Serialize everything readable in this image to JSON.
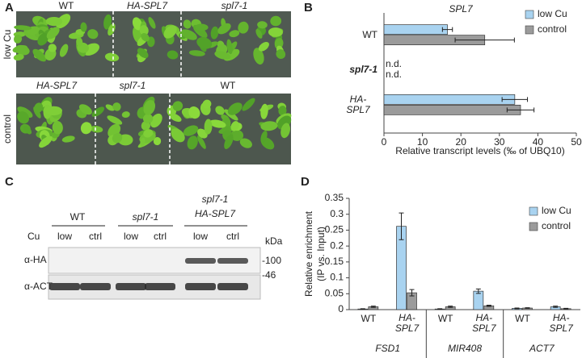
{
  "panel_a": {
    "label": "A",
    "top": {
      "condition": "low Cu",
      "genotypes": [
        "WT",
        "HA-SPL7",
        "spl7-1"
      ]
    },
    "bottom": {
      "condition": "control",
      "genotypes": [
        "HA-SPL7",
        "spl7-1",
        "WT"
      ]
    }
  },
  "panel_c": {
    "label": "C",
    "groups": [
      {
        "name": "WT"
      },
      {
        "name": "spl7-1"
      },
      {
        "name": "HA-SPL7",
        "over": "spl7-1"
      }
    ],
    "cu_label": "Cu",
    "lanes": [
      "low",
      "ctrl",
      "low",
      "ctrl",
      "low",
      "ctrl"
    ],
    "kda_label": "kDa",
    "antibodies": [
      "α-HA",
      "α-ACT"
    ],
    "markers": [
      "-100",
      "-46"
    ]
  },
  "chart_data": [
    {
      "type": "hbar",
      "label": "B",
      "title": "SPL7",
      "categories": [
        "WT",
        "spl7-1",
        "HA-SPL7"
      ],
      "series": [
        {
          "name": "low Cu",
          "color": "#a9d3f0",
          "values": [
            16.5,
            null,
            34
          ],
          "errors": [
            1.3,
            null,
            3.3
          ],
          "value_labels": [
            null,
            "n.d.",
            null
          ]
        },
        {
          "name": "control",
          "color": "#9b9b9b",
          "values": [
            26.2,
            null,
            35.5
          ],
          "errors": [
            7.7,
            null,
            3.5
          ],
          "value_labels": [
            null,
            "n.d.",
            null
          ]
        }
      ],
      "xlabel": "Relative transcript levels (‰ of UBQ10)",
      "xlim": [
        0,
        50
      ],
      "xticks": [
        0,
        10,
        20,
        30,
        40,
        50
      ],
      "legend": "upper right"
    },
    {
      "type": "bar",
      "label": "D",
      "categories": [
        "WT",
        "HA-SPL7",
        "WT",
        "HA-SPL7",
        "WT",
        "HA-SPL7"
      ],
      "groups": [
        "FSD1",
        "MIR408",
        "ACT7"
      ],
      "series": [
        {
          "name": "low Cu",
          "color": "#a9d3f0",
          "values": [
            0.002,
            0.262,
            0.002,
            0.058,
            0.004,
            0.009
          ],
          "errors": [
            0.001,
            0.042,
            0.001,
            0.007,
            0.001,
            0.002
          ]
        },
        {
          "name": "control",
          "color": "#9b9b9b",
          "values": [
            0.009,
            0.053,
            0.009,
            0.012,
            0.005,
            0.003
          ],
          "errors": [
            0.002,
            0.01,
            0.002,
            0.002,
            0.001,
            0.001
          ]
        }
      ],
      "ylabel": [
        "Relative enrichment",
        "(IP vs. Input)"
      ],
      "ylim": [
        0,
        0.35
      ],
      "yticks": [
        0,
        0.05,
        0.1,
        0.15,
        0.2,
        0.25,
        0.3,
        0.35
      ],
      "legend": "upper right"
    }
  ]
}
